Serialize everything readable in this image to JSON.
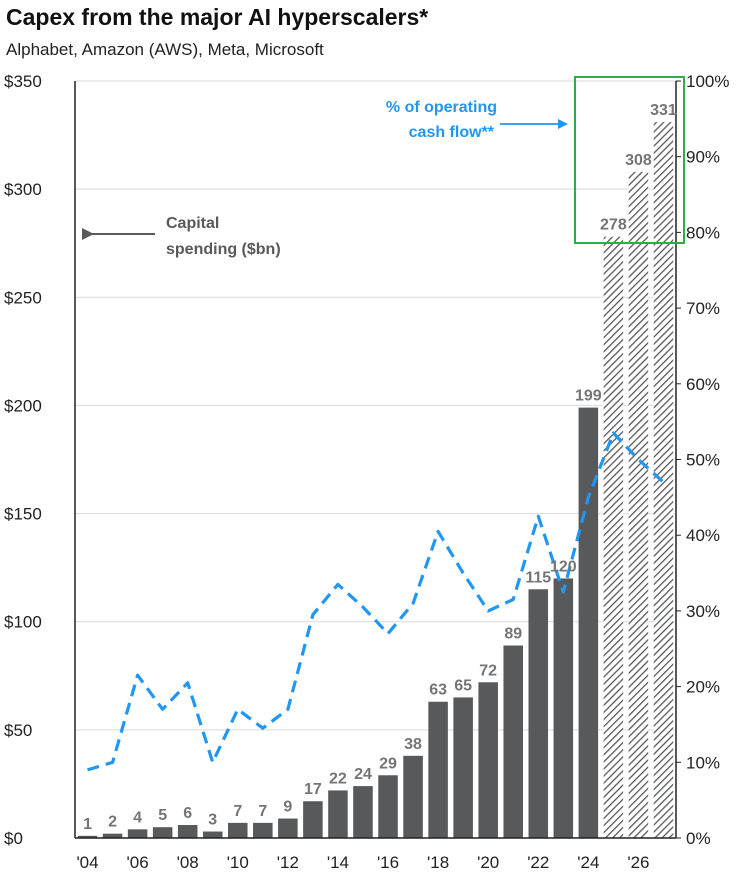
{
  "title": "Capex from the major AI hyperscalers*",
  "subtitle": "Alphabet, Amazon (AWS), Meta, Microsoft",
  "colors": {
    "bar": "#58595b",
    "forecast_hatch": "#58595b",
    "line": "#2196f3",
    "highlight_box": "#2eab4a",
    "grid": "#d9d9d9"
  },
  "annotations": {
    "capital_line1": "Capital",
    "capital_line2": "spending ($bn)",
    "ocf_line1": "% of operating",
    "ocf_line2": "cash flow**"
  },
  "chart_data": {
    "type": "bar",
    "title": "Capex from the major AI hyperscalers*",
    "subtitle": "Alphabet, Amazon (AWS), Meta, Microsoft",
    "categories": [
      "2004",
      "2005",
      "2006",
      "2007",
      "2008",
      "2009",
      "2010",
      "2011",
      "2012",
      "2013",
      "2014",
      "2015",
      "2016",
      "2017",
      "2018",
      "2019",
      "2020",
      "2021",
      "2022",
      "2023",
      "2024",
      "2025",
      "2026",
      "2027"
    ],
    "x_tick_labels": [
      "'04",
      "'06",
      "'08",
      "'10",
      "'12",
      "'14",
      "'16",
      "'18",
      "'20",
      "'22",
      "'24",
      "'26"
    ],
    "y_left": {
      "ylim": [
        0,
        350
      ],
      "ticks": [
        "$0",
        "$50",
        "$100",
        "$150",
        "$200",
        "$250",
        "$300",
        "$350"
      ]
    },
    "y_right": {
      "ylim": [
        0,
        100
      ],
      "ticks": [
        "0%",
        "10%",
        "20%",
        "30%",
        "40%",
        "50%",
        "60%",
        "70%",
        "80%",
        "90%",
        "100%"
      ]
    },
    "grid": true,
    "series": [
      {
        "name": "Capital spending ($bn)",
        "axis": "left",
        "kind": "bar",
        "values": [
          1,
          2,
          4,
          5,
          6,
          3,
          7,
          7,
          9,
          17,
          22,
          24,
          29,
          38,
          63,
          65,
          72,
          89,
          115,
          120,
          199,
          278,
          308,
          331
        ],
        "labels": [
          "1",
          "2",
          "4",
          "5",
          "6",
          "3",
          "7",
          "7",
          "9",
          "17",
          "22",
          "24",
          "29",
          "38",
          "63",
          "65",
          "72",
          "89",
          "115",
          "120",
          "199",
          "278",
          "308",
          "331"
        ],
        "forecast_from_index": 21
      },
      {
        "name": "% of operating cash flow**",
        "axis": "right",
        "kind": "line",
        "style": "dashed",
        "values": [
          9,
          10,
          21.5,
          17,
          20.5,
          10,
          17,
          14.5,
          17,
          29.5,
          33.5,
          30.5,
          27,
          31,
          40.5,
          35,
          30,
          31.5,
          42.5,
          32.5,
          45,
          53.5,
          50,
          47
        ]
      }
    ]
  }
}
